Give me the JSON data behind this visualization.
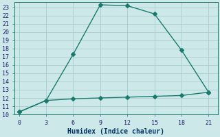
{
  "xlabel": "Humidex (Indice chaleur)",
  "line1_x": [
    0,
    3,
    6,
    9,
    12,
    15,
    18,
    21
  ],
  "line1_y": [
    10.3,
    11.7,
    17.3,
    23.3,
    23.2,
    22.2,
    17.8,
    12.7
  ],
  "line2_x": [
    0,
    3,
    6,
    9,
    12,
    15,
    18,
    21
  ],
  "line2_y": [
    10.3,
    11.7,
    11.9,
    12.0,
    12.1,
    12.2,
    12.3,
    12.7
  ],
  "line_color": "#1a7a6e",
  "bg_color": "#cce8e8",
  "grid_color": "#b0d8d8",
  "xlim": [
    -0.5,
    22
  ],
  "ylim": [
    10,
    23.6
  ],
  "xticks": [
    0,
    3,
    6,
    9,
    12,
    15,
    18,
    21
  ],
  "yticks": [
    10,
    11,
    12,
    13,
    14,
    15,
    16,
    17,
    18,
    19,
    20,
    21,
    22,
    23
  ],
  "marker": "D",
  "markersize": 3,
  "linewidth": 1.0,
  "tick_fontsize": 6.0,
  "xlabel_fontsize": 7.0
}
